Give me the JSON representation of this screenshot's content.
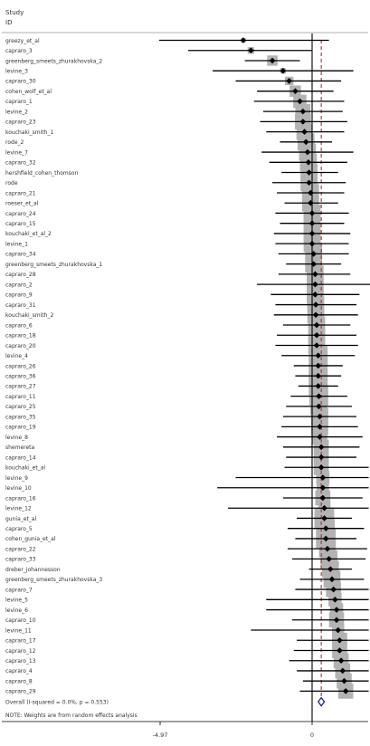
{
  "chart_data": {
    "type": "forest",
    "header": [
      "Study",
      "ID"
    ],
    "axis_ticks": [
      {
        "value": -4.97,
        "label": "-4.97"
      },
      {
        "value": 0,
        "label": "0"
      }
    ],
    "xlim": [
      -5.0,
      1.85
    ],
    "reference_line": 0,
    "pooled_line": 0.3,
    "colors": {
      "ci": "#000000",
      "weight_box": "#b3b3b3",
      "point": "#000000",
      "pooled_line": "#b03030",
      "overall_diamond": "#1a237e"
    },
    "studies": [
      {
        "label": "greezy_et_al",
        "est": -2.25,
        "lo": -5.0,
        "hi": 0.55,
        "w": 0.5
      },
      {
        "label": "capraro_3",
        "est": -2.0,
        "lo": -4.05,
        "hi": 0.0,
        "w": 0.7
      },
      {
        "label": "greenberg_smeets_zhurakhovska_2",
        "est": -1.3,
        "lo": -2.2,
        "hi": -0.4,
        "w": 1.1
      },
      {
        "label": "levine_3",
        "est": -0.95,
        "lo": -3.25,
        "hi": 1.35,
        "w": 0.6
      },
      {
        "label": "capraro_30",
        "est": -0.75,
        "lo": -2.5,
        "hi": 0.95,
        "w": 0.9
      },
      {
        "label": "cohen_wolf_et_al",
        "est": -0.55,
        "lo": -1.8,
        "hi": 0.7,
        "w": 1.2
      },
      {
        "label": "capraro_1",
        "est": -0.4,
        "lo": -1.9,
        "hi": 1.05,
        "w": 1.4
      },
      {
        "label": "levine_2",
        "est": -0.3,
        "lo": -1.6,
        "hi": 1.0,
        "w": 1.6
      },
      {
        "label": "capraro_23",
        "est": -0.3,
        "lo": -1.7,
        "hi": 1.15,
        "w": 1.7
      },
      {
        "label": "kouchaki_smith_1",
        "est": -0.25,
        "lo": -1.5,
        "hi": 1.05,
        "w": 1.7
      },
      {
        "label": "rode_2",
        "est": -0.2,
        "lo": -1.05,
        "hi": 0.65,
        "w": 1.8
      },
      {
        "label": "levine_7",
        "est": -0.15,
        "lo": -1.65,
        "hi": 1.35,
        "w": 1.8
      },
      {
        "label": "capraro_32",
        "est": -0.12,
        "lo": -1.4,
        "hi": 1.15,
        "w": 1.8
      },
      {
        "label": "hershfield_cohen_thomson",
        "est": -0.1,
        "lo": -1.0,
        "hi": 0.85,
        "w": 1.8
      },
      {
        "label": "rode",
        "est": -0.1,
        "lo": -1.3,
        "hi": 1.1,
        "w": 1.8
      },
      {
        "label": "capraro_21",
        "est": -0.05,
        "lo": -1.15,
        "hi": 1.05,
        "w": 1.8
      },
      {
        "label": "roeser_et_al",
        "est": -0.05,
        "lo": -0.9,
        "hi": 0.85,
        "w": 1.8
      },
      {
        "label": "capraro_24",
        "est": 0.0,
        "lo": -1.2,
        "hi": 1.2,
        "w": 1.8
      },
      {
        "label": "capraro_15",
        "est": 0.0,
        "lo": -1.05,
        "hi": 1.05,
        "w": 1.8
      },
      {
        "label": "kouchaki_et_al_2",
        "est": 0.0,
        "lo": -1.25,
        "hi": 1.25,
        "w": 1.8
      },
      {
        "label": "levine_1",
        "est": 0.0,
        "lo": -1.2,
        "hi": 1.2,
        "w": 1.8
      },
      {
        "label": "capraro_34",
        "est": 0.05,
        "lo": -1.1,
        "hi": 1.2,
        "w": 1.8
      },
      {
        "label": "greenberg_smeets_zhurakhovska_1",
        "est": 0.05,
        "lo": -0.85,
        "hi": 0.95,
        "w": 1.8
      },
      {
        "label": "capraro_28",
        "est": 0.1,
        "lo": -1.1,
        "hi": 1.25,
        "w": 1.8
      },
      {
        "label": "capraro_2",
        "est": 0.1,
        "lo": -1.8,
        "hi": 2.0,
        "w": 1.8
      },
      {
        "label": "capraro_9",
        "est": 0.1,
        "lo": -1.35,
        "hi": 1.55,
        "w": 1.8
      },
      {
        "label": "capraro_31",
        "est": 0.12,
        "lo": -1.2,
        "hi": 1.45,
        "w": 1.8
      },
      {
        "label": "kouchaki_smith_2",
        "est": 0.12,
        "lo": -1.25,
        "hi": 1.5,
        "w": 1.8
      },
      {
        "label": "capraro_6",
        "est": 0.15,
        "lo": -0.95,
        "hi": 1.25,
        "w": 1.8
      },
      {
        "label": "capraro_18",
        "est": 0.15,
        "lo": -1.15,
        "hi": 1.45,
        "w": 1.8
      },
      {
        "label": "capraro_20",
        "est": 0.15,
        "lo": -1.2,
        "hi": 1.5,
        "w": 1.8
      },
      {
        "label": "levine_4",
        "est": 0.2,
        "lo": -1.0,
        "hi": 1.4,
        "w": 2.0
      },
      {
        "label": "capraro_26",
        "est": 0.2,
        "lo": -0.6,
        "hi": 1.0,
        "w": 2.0
      },
      {
        "label": "capraro_36",
        "est": 0.2,
        "lo": -0.55,
        "hi": 0.95,
        "w": 2.0
      },
      {
        "label": "capraro_27",
        "est": 0.2,
        "lo": -0.45,
        "hi": 0.85,
        "w": 2.0
      },
      {
        "label": "capraro_11",
        "est": 0.22,
        "lo": -0.7,
        "hi": 1.15,
        "w": 2.0
      },
      {
        "label": "capraro_25",
        "est": 0.22,
        "lo": -0.85,
        "hi": 1.3,
        "w": 1.8
      },
      {
        "label": "capraro_35",
        "est": 0.25,
        "lo": -0.95,
        "hi": 1.45,
        "w": 1.8
      },
      {
        "label": "capraro_19",
        "est": 0.25,
        "lo": -1.0,
        "hi": 1.5,
        "w": 1.8
      },
      {
        "label": "levine_8",
        "est": 0.25,
        "lo": -1.15,
        "hi": 1.65,
        "w": 1.6
      },
      {
        "label": "shemereta",
        "est": 0.3,
        "lo": -0.95,
        "hi": 1.55,
        "w": 1.6
      },
      {
        "label": "capraro_14",
        "est": 0.3,
        "lo": -0.85,
        "hi": 1.45,
        "w": 1.6
      },
      {
        "label": "kouchaki_et_al",
        "est": 0.3,
        "lo": -0.9,
        "hi": 1.85,
        "w": 1.6
      },
      {
        "label": "levine_9",
        "est": 0.35,
        "lo": -2.5,
        "hi": 1.85,
        "w": 1.4
      },
      {
        "label": "levine_10",
        "est": 0.35,
        "lo": -3.1,
        "hi": 1.85,
        "w": 1.3
      },
      {
        "label": "capraro_16",
        "est": 0.35,
        "lo": -0.95,
        "hi": 1.65,
        "w": 1.6
      },
      {
        "label": "levine_12",
        "est": 0.4,
        "lo": -2.75,
        "hi": 1.85,
        "w": 1.3
      },
      {
        "label": "gunia_et_al",
        "est": 0.4,
        "lo": -0.5,
        "hi": 1.3,
        "w": 2.1
      },
      {
        "label": "capraro_5",
        "est": 0.45,
        "lo": -0.8,
        "hi": 1.7,
        "w": 1.9
      },
      {
        "label": "cohen_gunia_et_al",
        "est": 0.45,
        "lo": -0.55,
        "hi": 1.45,
        "w": 2.1
      },
      {
        "label": "capraro_22",
        "est": 0.5,
        "lo": -0.8,
        "hi": 1.8,
        "w": 1.8
      },
      {
        "label": "capraro_33",
        "est": 0.55,
        "lo": -0.65,
        "hi": 1.75,
        "w": 1.8
      },
      {
        "label": "dreber_johannesson",
        "est": 0.6,
        "lo": -0.1,
        "hi": 1.3,
        "w": 1.8
      },
      {
        "label": "greenberg_smeets_zhurakhovska_3",
        "est": 0.65,
        "lo": -0.4,
        "hi": 1.7,
        "w": 1.8
      },
      {
        "label": "capraro_7",
        "est": 0.7,
        "lo": -0.55,
        "hi": 1.85,
        "w": 1.6
      },
      {
        "label": "levine_5",
        "est": 0.75,
        "lo": -1.5,
        "hi": 1.85,
        "w": 1.4
      },
      {
        "label": "levine_6",
        "est": 0.8,
        "lo": -1.5,
        "hi": 1.85,
        "w": 1.4
      },
      {
        "label": "capraro_10",
        "est": 0.8,
        "lo": -0.65,
        "hi": 1.85,
        "w": 1.6
      },
      {
        "label": "levine_11",
        "est": 0.85,
        "lo": -2.0,
        "hi": 1.85,
        "w": 1.3
      },
      {
        "label": "capraro_17",
        "est": 0.9,
        "lo": -0.5,
        "hi": 1.85,
        "w": 1.6
      },
      {
        "label": "capraro_12",
        "est": 0.9,
        "lo": -0.6,
        "hi": 1.85,
        "w": 1.6
      },
      {
        "label": "capraro_13",
        "est": 0.95,
        "lo": -0.75,
        "hi": 1.85,
        "w": 1.6
      },
      {
        "label": "capraro_4",
        "est": 1.0,
        "lo": -0.5,
        "hi": 1.85,
        "w": 1.6
      },
      {
        "label": "capraro_8",
        "est": 1.05,
        "lo": -0.3,
        "hi": 1.85,
        "w": 1.6
      },
      {
        "label": "capraro_29",
        "est": 1.1,
        "lo": -0.4,
        "hi": 1.85,
        "w": 1.6
      }
    ],
    "overall": {
      "label": "Overall  (I-squared = 0.0%, p = 0.553)",
      "est": 0.3,
      "lo": 0.2,
      "hi": 0.4
    },
    "note": "NOTE: Weights are from random effects analysis"
  }
}
